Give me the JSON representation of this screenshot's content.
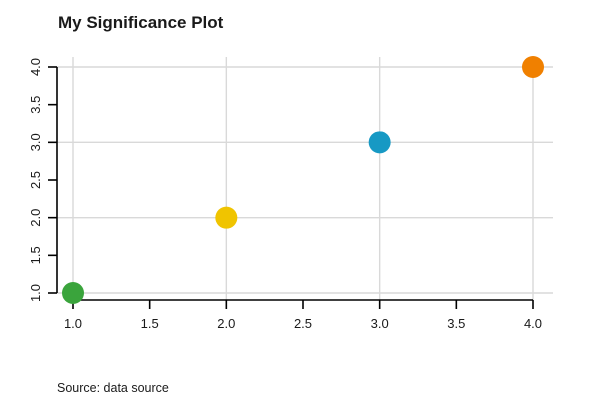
{
  "figure": {
    "title": "My Significance Plot",
    "source": "Source: data source"
  },
  "chart_data": {
    "type": "scatter",
    "title": "My Significance Plot",
    "source_note": "Source: data source",
    "xlabel": "",
    "ylabel": "",
    "xlim": [
      1.0,
      4.0
    ],
    "ylim": [
      1.0,
      4.0
    ],
    "x_ticks": [
      1.0,
      1.5,
      2.0,
      2.5,
      3.0,
      3.5,
      4.0
    ],
    "x_tick_labels": [
      "1.0",
      "1.5",
      "2.0",
      "2.5",
      "3.0",
      "3.5",
      "4.0"
    ],
    "y_ticks": [
      1.0,
      1.5,
      2.0,
      2.5,
      3.0,
      3.5,
      4.0
    ],
    "y_tick_labels": [
      "1.0",
      "1.5",
      "2.0",
      "2.5",
      "3.0",
      "3.5",
      "4.0"
    ],
    "grid": true,
    "grid_x": [
      1.0,
      2.0,
      3.0,
      4.0
    ],
    "grid_y": [
      1.0,
      2.0,
      3.0,
      4.0
    ],
    "legend": "none",
    "points": [
      {
        "x": 1,
        "y": 1,
        "color": "#3aa43c",
        "name": "point-1"
      },
      {
        "x": 2,
        "y": 2,
        "color": "#f0c400",
        "name": "point-2"
      },
      {
        "x": 3,
        "y": 3,
        "color": "#1799c4",
        "name": "point-3"
      },
      {
        "x": 4,
        "y": 4,
        "color": "#f08000",
        "name": "point-4"
      }
    ],
    "colors": {
      "grid": "#d9d9d9",
      "axis": "#000000",
      "text": "#1a1a1a",
      "background": "#ffffff"
    }
  }
}
